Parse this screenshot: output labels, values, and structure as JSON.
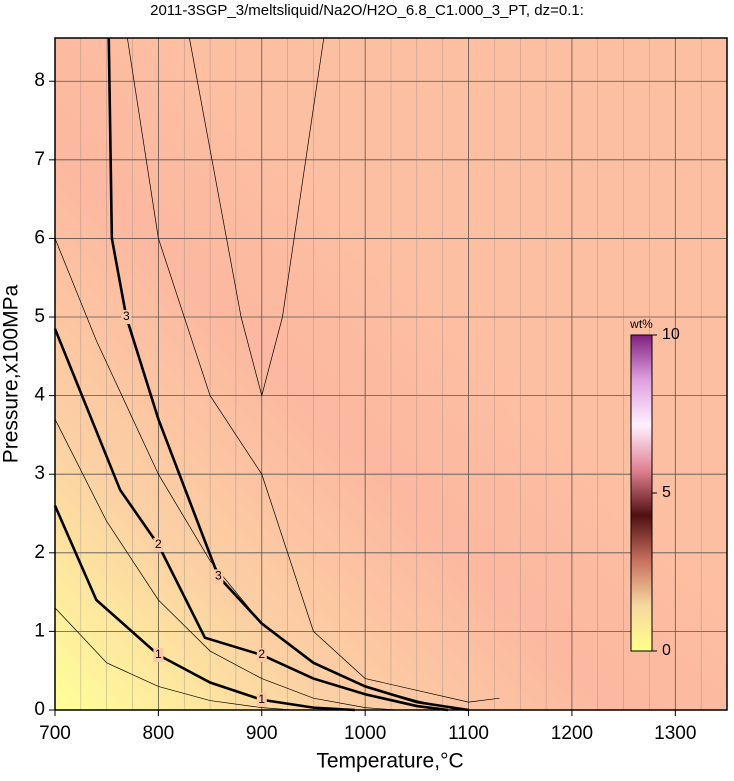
{
  "chart_data": {
    "type": "contour",
    "title": "2011-3SGP_3/meltsliquid/Na2O/H2O_6.8_C1.000_3_PT, dz=0.1:",
    "xlabel": "Temperature,°C",
    "ylabel": "Pressure,x100MPa",
    "xlim": [
      700,
      1350
    ],
    "ylim": [
      0,
      8.55
    ],
    "xticks": [
      700,
      800,
      900,
      1000,
      1100,
      1200,
      1300
    ],
    "yticks": [
      0,
      1,
      2,
      3,
      4,
      5,
      6,
      7,
      8
    ],
    "grid": true,
    "contours": [
      {
        "level": 0.5,
        "x": [
          700,
          750,
          800,
          850,
          900,
          930
        ],
        "y": [
          1.3,
          0.6,
          0.3,
          0.12,
          0.03,
          0
        ]
      },
      {
        "level": 1,
        "bold": true,
        "x": [
          700,
          740,
          800,
          850,
          900,
          950,
          990
        ],
        "y": [
          2.6,
          1.4,
          0.7,
          0.35,
          0.13,
          0.03,
          0
        ]
      },
      {
        "level": 1.5,
        "x": [
          700,
          750,
          800,
          850,
          900,
          950,
          1000,
          1030
        ],
        "y": [
          3.7,
          2.4,
          1.4,
          0.75,
          0.4,
          0.15,
          0.03,
          0
        ]
      },
      {
        "level": 2,
        "bold": true,
        "x": [
          700,
          763,
          800,
          845,
          900,
          950,
          1000,
          1050,
          1080
        ],
        "y": [
          4.85,
          2.8,
          2.1,
          0.92,
          0.7,
          0.4,
          0.2,
          0.05,
          0
        ]
      },
      {
        "level": 2.5,
        "x": [
          700,
          740,
          800,
          850,
          900,
          950,
          1000,
          1050,
          1090
        ],
        "y": [
          6.0,
          4.7,
          3.0,
          1.9,
          1.1,
          0.6,
          0.3,
          0.12,
          0
        ]
      },
      {
        "level": 3,
        "bold": true,
        "x": [
          752,
          755,
          769,
          800,
          858,
          900,
          950,
          1000,
          1050,
          1100
        ],
        "y": [
          8.55,
          6.0,
          5.0,
          3.7,
          1.7,
          1.1,
          0.6,
          0.3,
          0.1,
          0
        ]
      },
      {
        "level": 3.2,
        "x": [
          770,
          800,
          850,
          900,
          920,
          950,
          1000,
          1100,
          1130
        ],
        "y": [
          8.55,
          6.0,
          4.0,
          3.0,
          2.2,
          1.0,
          0.4,
          0.1,
          0.15
        ]
      },
      {
        "level": 3.6,
        "x": [
          830,
          880,
          900,
          920,
          960
        ],
        "y": [
          8.55,
          5.0,
          4.0,
          5.0,
          8.55
        ]
      }
    ],
    "colorbar": {
      "label": "wt%",
      "lim": [
        0,
        10
      ],
      "ticks": [
        0,
        5,
        10
      ],
      "colors": [
        "#ffff88",
        "#f6d8a0",
        "#c87060",
        "#501010",
        "#e08090",
        "#fff0ff",
        "#e0a0e0",
        "#802080"
      ]
    }
  }
}
